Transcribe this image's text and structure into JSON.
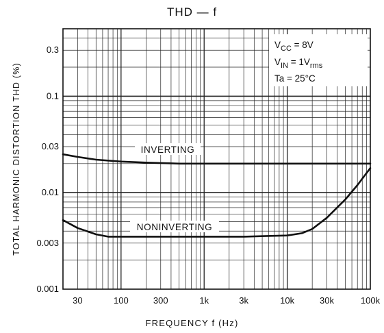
{
  "chart_data": {
    "type": "line",
    "title": "THD — f",
    "xlabel": "FREQUENCY f (Hz)",
    "ylabel": "TOTAL HARMONIC DISTORTION THD (%)",
    "x_scale": "log",
    "y_scale": "log",
    "xlim": [
      20,
      100000
    ],
    "ylim": [
      0.001,
      0.5
    ],
    "x_ticks": [
      {
        "value": 30,
        "label": "30"
      },
      {
        "value": 100,
        "label": "100"
      },
      {
        "value": 300,
        "label": "300"
      },
      {
        "value": 1000,
        "label": "1k"
      },
      {
        "value": 3000,
        "label": "3k"
      },
      {
        "value": 10000,
        "label": "10k"
      },
      {
        "value": 30000,
        "label": "30k"
      },
      {
        "value": 100000,
        "label": "100k"
      }
    ],
    "y_ticks": [
      {
        "value": 0.001,
        "label": "0.001"
      },
      {
        "value": 0.003,
        "label": "0.003"
      },
      {
        "value": 0.01,
        "label": "0.01"
      },
      {
        "value": 0.03,
        "label": "0.03"
      },
      {
        "value": 0.1,
        "label": "0.1"
      },
      {
        "value": 0.3,
        "label": "0.3"
      }
    ],
    "grid": true,
    "conditions": [
      "V_CC = 8V",
      "V_IN = 1V_rms",
      "Ta = 25°C"
    ],
    "series": [
      {
        "name": "INVERTING",
        "x": [
          20,
          30,
          50,
          100,
          200,
          500,
          1000,
          3000,
          10000,
          30000,
          100000
        ],
        "y": [
          0.025,
          0.0235,
          0.022,
          0.021,
          0.0205,
          0.02,
          0.02,
          0.02,
          0.02,
          0.02,
          0.02
        ]
      },
      {
        "name": "NONINVERTING",
        "x": [
          20,
          30,
          50,
          70,
          100,
          200,
          500,
          1000,
          3000,
          10000,
          15000,
          20000,
          30000,
          50000,
          70000,
          100000
        ],
        "y": [
          0.0052,
          0.0043,
          0.0037,
          0.0035,
          0.0035,
          0.0035,
          0.0035,
          0.0035,
          0.0035,
          0.0036,
          0.0038,
          0.0042,
          0.0055,
          0.0085,
          0.012,
          0.018
        ]
      }
    ]
  }
}
